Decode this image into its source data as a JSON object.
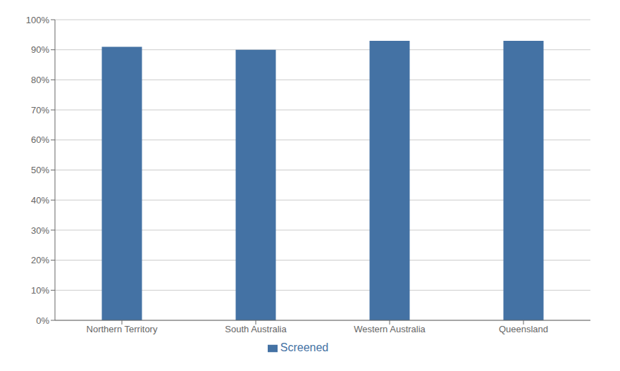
{
  "chart_data": {
    "type": "bar",
    "categories": [
      "Northern Territory",
      "South Australia",
      "Western Australia",
      "Queensland"
    ],
    "series": [
      {
        "name": "Screened",
        "color": "#4472a4",
        "values": [
          0.91,
          0.9,
          0.93,
          0.93
        ]
      }
    ],
    "ylim": [
      0,
      1.0
    ],
    "yticks": [
      {
        "value": 0.0,
        "label": "0%"
      },
      {
        "value": 0.1,
        "label": "10%"
      },
      {
        "value": 0.2,
        "label": "20%"
      },
      {
        "value": 0.3,
        "label": "30%"
      },
      {
        "value": 0.4,
        "label": "40%"
      },
      {
        "value": 0.5,
        "label": "50%"
      },
      {
        "value": 0.6,
        "label": "60%"
      },
      {
        "value": 0.7,
        "label": "70%"
      },
      {
        "value": 0.8,
        "label": "80%"
      },
      {
        "value": 0.9,
        "label": "90%"
      },
      {
        "value": 1.0,
        "label": "100%"
      }
    ],
    "grid": true,
    "legend": "bottom"
  }
}
